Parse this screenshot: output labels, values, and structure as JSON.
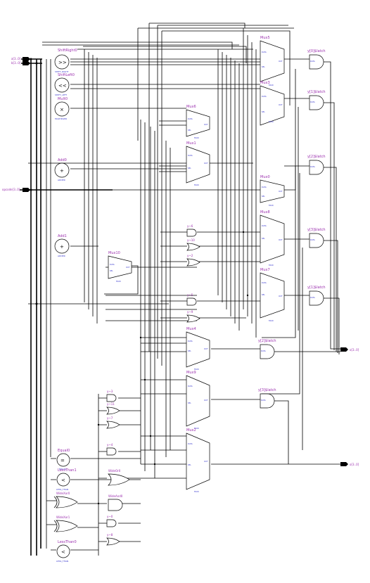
{
  "inputs": [
    {
      "id": "a",
      "label": "a[3..0]"
    },
    {
      "id": "b",
      "label": "b[3..0]"
    },
    {
      "id": "opcode",
      "label": "opcode[3..0]"
    }
  ],
  "outputs": [
    {
      "id": "o1",
      "label": "o[3..0]"
    },
    {
      "id": "o2",
      "label": "o[3..0]"
    }
  ],
  "operators": [
    {
      "id": "shiftright0",
      "name": "ShiftRight0",
      "symbol": ">>",
      "sub": "SHIFT_RIGHT"
    },
    {
      "id": "shiftleft0",
      "name": "ShiftLeft0",
      "symbol": "<<",
      "sub": "SHIFT_LEFT"
    },
    {
      "id": "mult0",
      "name": "Mult0",
      "symbol": "×",
      "sub": "MULTIPLIER"
    },
    {
      "id": "add0",
      "name": "Add0",
      "symbol": "+",
      "sub": "ADDER"
    },
    {
      "id": "add1",
      "name": "Add1",
      "symbol": "+",
      "sub": "ADDER"
    },
    {
      "id": "equal0",
      "name": "Equal0",
      "symbol": "=",
      "sub": "EQUAL"
    },
    {
      "id": "lessthan1",
      "name": "LessThan1",
      "symbol": "<",
      "sub": "LESS_THAN"
    },
    {
      "id": "lessthan0",
      "name": "LessThan0",
      "symbol": "<",
      "sub": "LESS_THAN"
    }
  ],
  "muxes": [
    {
      "id": "mux5",
      "name": "Mux5",
      "sub": "MUX"
    },
    {
      "id": "mux3",
      "name": "Mux3",
      "sub": "MUX"
    },
    {
      "id": "mux6",
      "name": "Mux6",
      "sub": "MUX"
    },
    {
      "id": "mux1",
      "name": "Mux1",
      "sub": "MUX"
    },
    {
      "id": "mux0",
      "name": "Mux0",
      "sub": "MUX"
    },
    {
      "id": "mux8",
      "name": "Mux8",
      "sub": "MUX"
    },
    {
      "id": "mux10",
      "name": "Mux10",
      "sub": "MUX"
    },
    {
      "id": "mux7",
      "name": "Mux7",
      "sub": "MUX"
    },
    {
      "id": "mux4",
      "name": "Mux4",
      "sub": "MUX"
    },
    {
      "id": "mux9",
      "name": "Mux9",
      "sub": "MUX"
    },
    {
      "id": "mux2",
      "name": "Mux2",
      "sub": "MUX"
    }
  ],
  "mux_pins": {
    "data": "DATA",
    "sel": "SEL",
    "out": "OUT"
  },
  "latches": [
    {
      "id": "l0",
      "name": "y[0]$latch"
    },
    {
      "id": "l1",
      "name": "y[1]$latch"
    },
    {
      "id": "l2",
      "name": "y[2]$latch"
    },
    {
      "id": "l3",
      "name": "y[3]$latch"
    },
    {
      "id": "l4",
      "name": "y[1]$latch"
    },
    {
      "id": "l5",
      "name": "y[2]$latch"
    },
    {
      "id": "l6",
      "name": "y[3]$latch"
    }
  ],
  "wide_gates": [
    {
      "id": "widexor0",
      "name": "WideXor0"
    },
    {
      "id": "wideor0",
      "name": "WideOr0"
    },
    {
      "id": "wideand0",
      "name": "WideAnd0"
    },
    {
      "id": "widexor1",
      "name": "WideXor1"
    }
  ],
  "small_gates": [
    {
      "id": "g1",
      "name": "y~6"
    },
    {
      "id": "g2",
      "name": "y~10"
    },
    {
      "id": "g3",
      "name": "y~2"
    },
    {
      "id": "g4",
      "name": "y~5"
    },
    {
      "id": "g5",
      "name": "y~9"
    },
    {
      "id": "g6",
      "name": "y~3"
    },
    {
      "id": "g7",
      "name": "y~11"
    },
    {
      "id": "g8",
      "name": "y~7"
    },
    {
      "id": "g9",
      "name": "y~4"
    },
    {
      "id": "g10",
      "name": "y~0"
    },
    {
      "id": "g11",
      "name": "y~8"
    }
  ]
}
